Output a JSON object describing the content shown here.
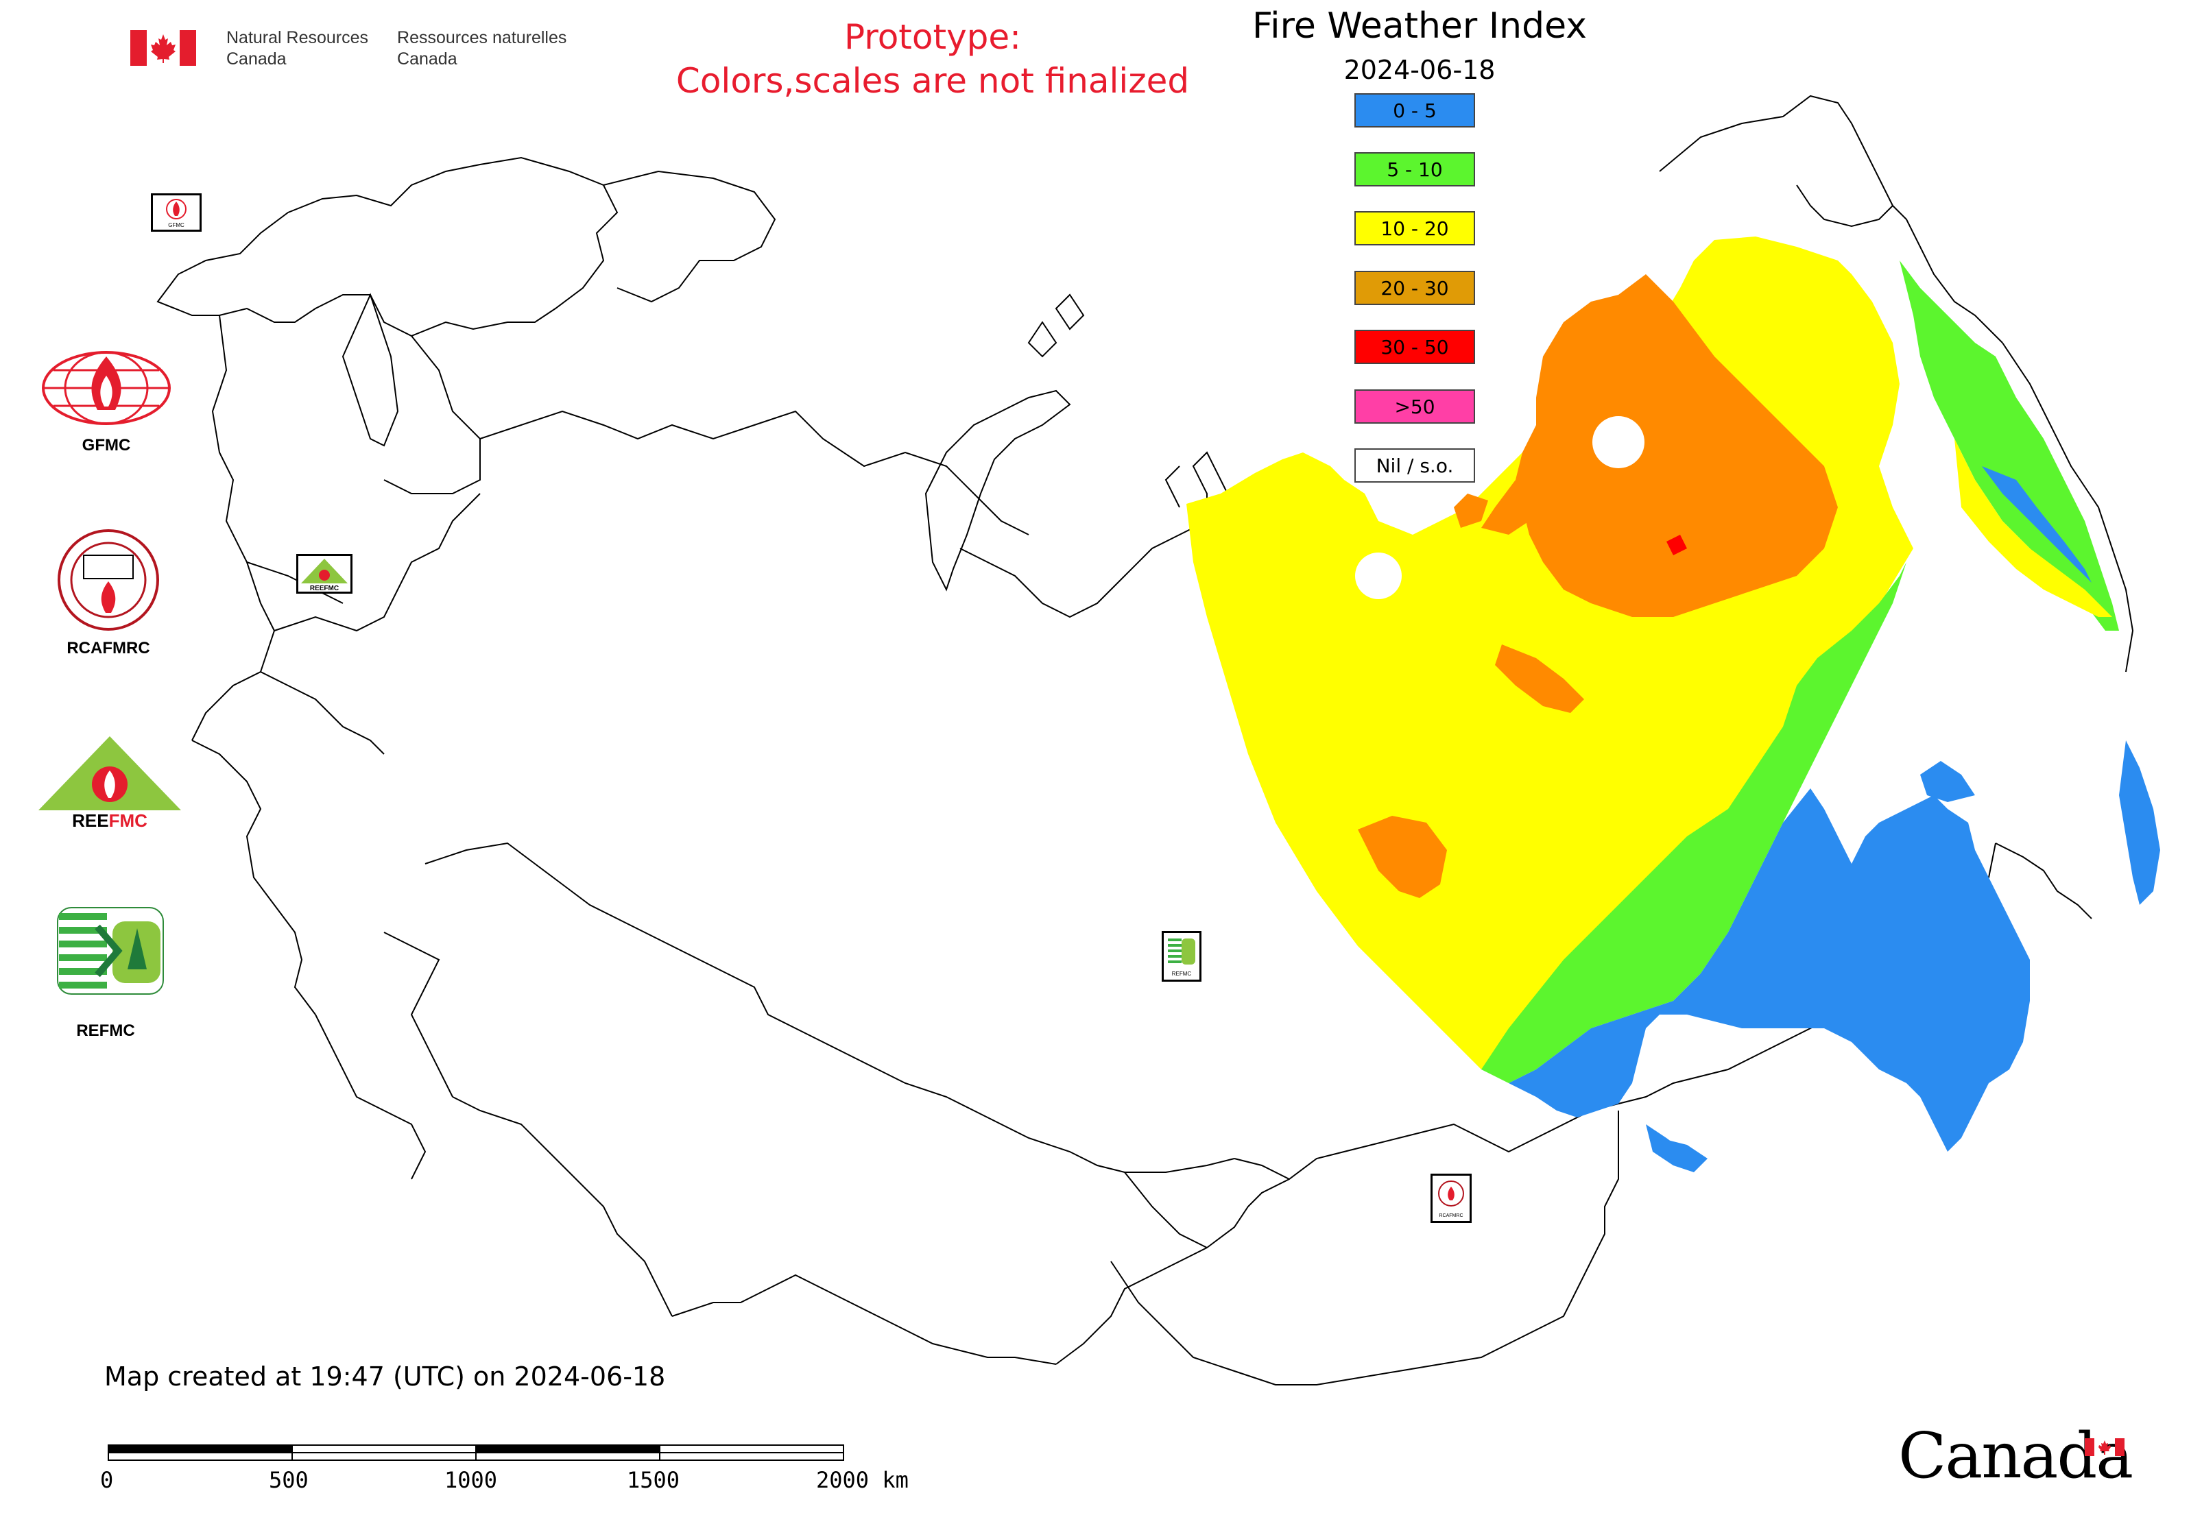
{
  "header": {
    "org_en_line1": "Natural Resources",
    "org_en_line2": "Canada",
    "org_fr_line1": "Ressources naturelles",
    "org_fr_line2": "Canada",
    "prototype_line1": "Prototype:",
    "prototype_line2": "Colors,scales are not finalized"
  },
  "map_title": "Fire Weather Index",
  "map_date": "2024-06-18",
  "legend": [
    {
      "label": "0 - 5",
      "color": "#2b8cf0"
    },
    {
      "label": "5 - 10",
      "color": "#5cf52e"
    },
    {
      "label": "10 - 20",
      "color": "#ffff00"
    },
    {
      "label": "20 - 30",
      "color": "#e09b06"
    },
    {
      "label": "30 - 50",
      "color": "#ff0000"
    },
    {
      "label": ">50",
      "color": "#ff3fa6"
    },
    {
      "label": "Nil / s.o.",
      "color": "#ffffff"
    }
  ],
  "logos": {
    "gfmc": "GFMC",
    "rcafmrc": "RCAFMRC",
    "reefmc": "REEFMC",
    "refmc": "REFMC",
    "small_gfmc": "GFMC",
    "small_reefmc": "REEFMC",
    "small_refmc": "REFMC",
    "small_rcafmrc": "RCAFMRC"
  },
  "footer": {
    "created": "Map created at 19:47 (UTC) on 2024-06-18"
  },
  "scalebar": {
    "labels": [
      "0",
      "500",
      "1000",
      "1500",
      "2000 km"
    ]
  },
  "wordmark": "Canada"
}
